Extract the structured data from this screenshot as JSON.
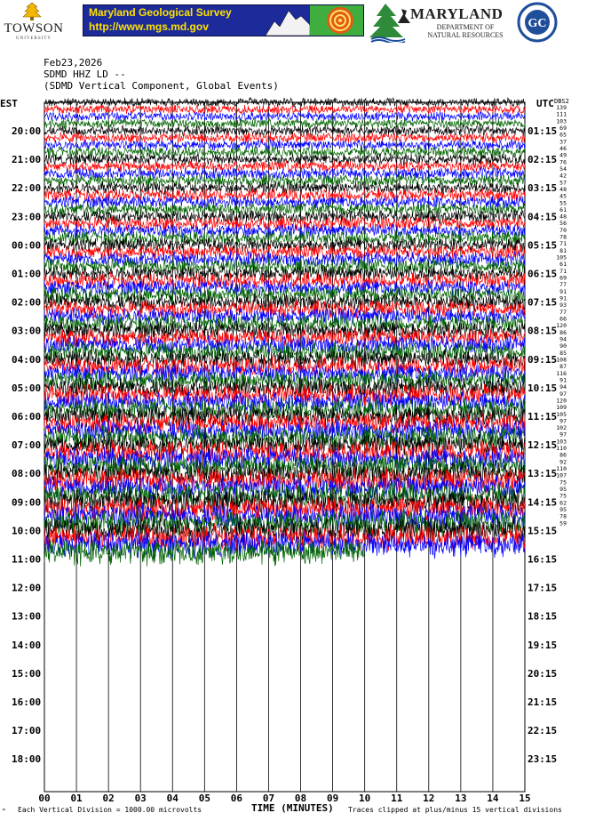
{
  "banner": {
    "towson_name": "TOWSON",
    "towson_sub": "UNIVERSITY",
    "mgs_title": "Maryland Geological Survey",
    "mgs_url": "http://www.mgs.md.gov",
    "dnr_title": "MARYLAND",
    "dnr_line1": "DEPARTMENT OF",
    "dnr_line2": "NATURAL RESOURCES",
    "gc_label": "GC"
  },
  "header": {
    "date": "Feb23,2026",
    "station": "SDMD HHZ LD --",
    "component": "(SDMD Vertical Component, Global Events)",
    "left_zone": "EST",
    "right_zone": "UTC",
    "dbs_label": "DBS2"
  },
  "footer": {
    "left_note": "Each Vertical Division = 1000.00 microvolts",
    "axis_title": "TIME (MINUTES)",
    "right_note": "Traces clipped at plus/minus 15 vertical divisions",
    "corner_mark": "\""
  },
  "chart_data": {
    "type": "line",
    "title": "SDMD HHZ LD --",
    "xlabel": "TIME (MINUTES)",
    "xlim": [
      0,
      15
    ],
    "x_ticks": [
      "00",
      "01",
      "02",
      "03",
      "04",
      "05",
      "06",
      "07",
      "08",
      "09",
      "10",
      "11",
      "12",
      "13",
      "14",
      "15"
    ],
    "rows": [
      {
        "est": "20:00",
        "utc": "01:15"
      },
      {
        "est": "21:00",
        "utc": "02:15"
      },
      {
        "est": "22:00",
        "utc": "03:15"
      },
      {
        "est": "23:00",
        "utc": "04:15"
      },
      {
        "est": "00:00",
        "utc": "05:15"
      },
      {
        "est": "01:00",
        "utc": "06:15"
      },
      {
        "est": "02:00",
        "utc": "07:15"
      },
      {
        "est": "03:00",
        "utc": "08:15"
      },
      {
        "est": "04:00",
        "utc": "09:15"
      },
      {
        "est": "05:00",
        "utc": "10:15"
      },
      {
        "est": "06:00",
        "utc": "11:15"
      },
      {
        "est": "07:00",
        "utc": "12:15"
      },
      {
        "est": "08:00",
        "utc": "13:15"
      },
      {
        "est": "09:00",
        "utc": "14:15"
      },
      {
        "est": "10:00",
        "utc": "15:15"
      },
      {
        "est": "11:00",
        "utc": "16:15"
      },
      {
        "est": "12:00",
        "utc": "17:15"
      },
      {
        "est": "13:00",
        "utc": "18:15"
      },
      {
        "est": "14:00",
        "utc": "19:15"
      },
      {
        "est": "15:00",
        "utc": "20:15"
      },
      {
        "est": "16:00",
        "utc": "21:15"
      },
      {
        "est": "17:00",
        "utc": "22:15"
      },
      {
        "est": "18:00",
        "utc": "23:15"
      }
    ],
    "trace_colors": [
      "#000000",
      "#ff0000",
      "#0000ff",
      "#006400"
    ],
    "traces_per_row": 4,
    "filled_traces": 64,
    "last_trace_end_minutes": 10,
    "dbs_values": [
      139,
      111,
      103,
      69,
      65,
      37,
      46,
      49,
      76,
      54,
      42,
      57,
      48,
      45,
      55,
      61,
      48,
      56,
      70,
      78,
      71,
      81,
      105,
      61,
      71,
      69,
      77,
      91,
      91,
      93,
      77,
      66,
      120,
      86,
      94,
      90,
      85,
      108,
      87,
      116,
      91,
      94,
      97,
      120,
      109,
      105,
      97,
      102,
      97,
      103,
      110,
      86,
      92,
      110,
      107,
      75,
      95,
      75,
      62,
      95,
      78,
      59
    ]
  }
}
